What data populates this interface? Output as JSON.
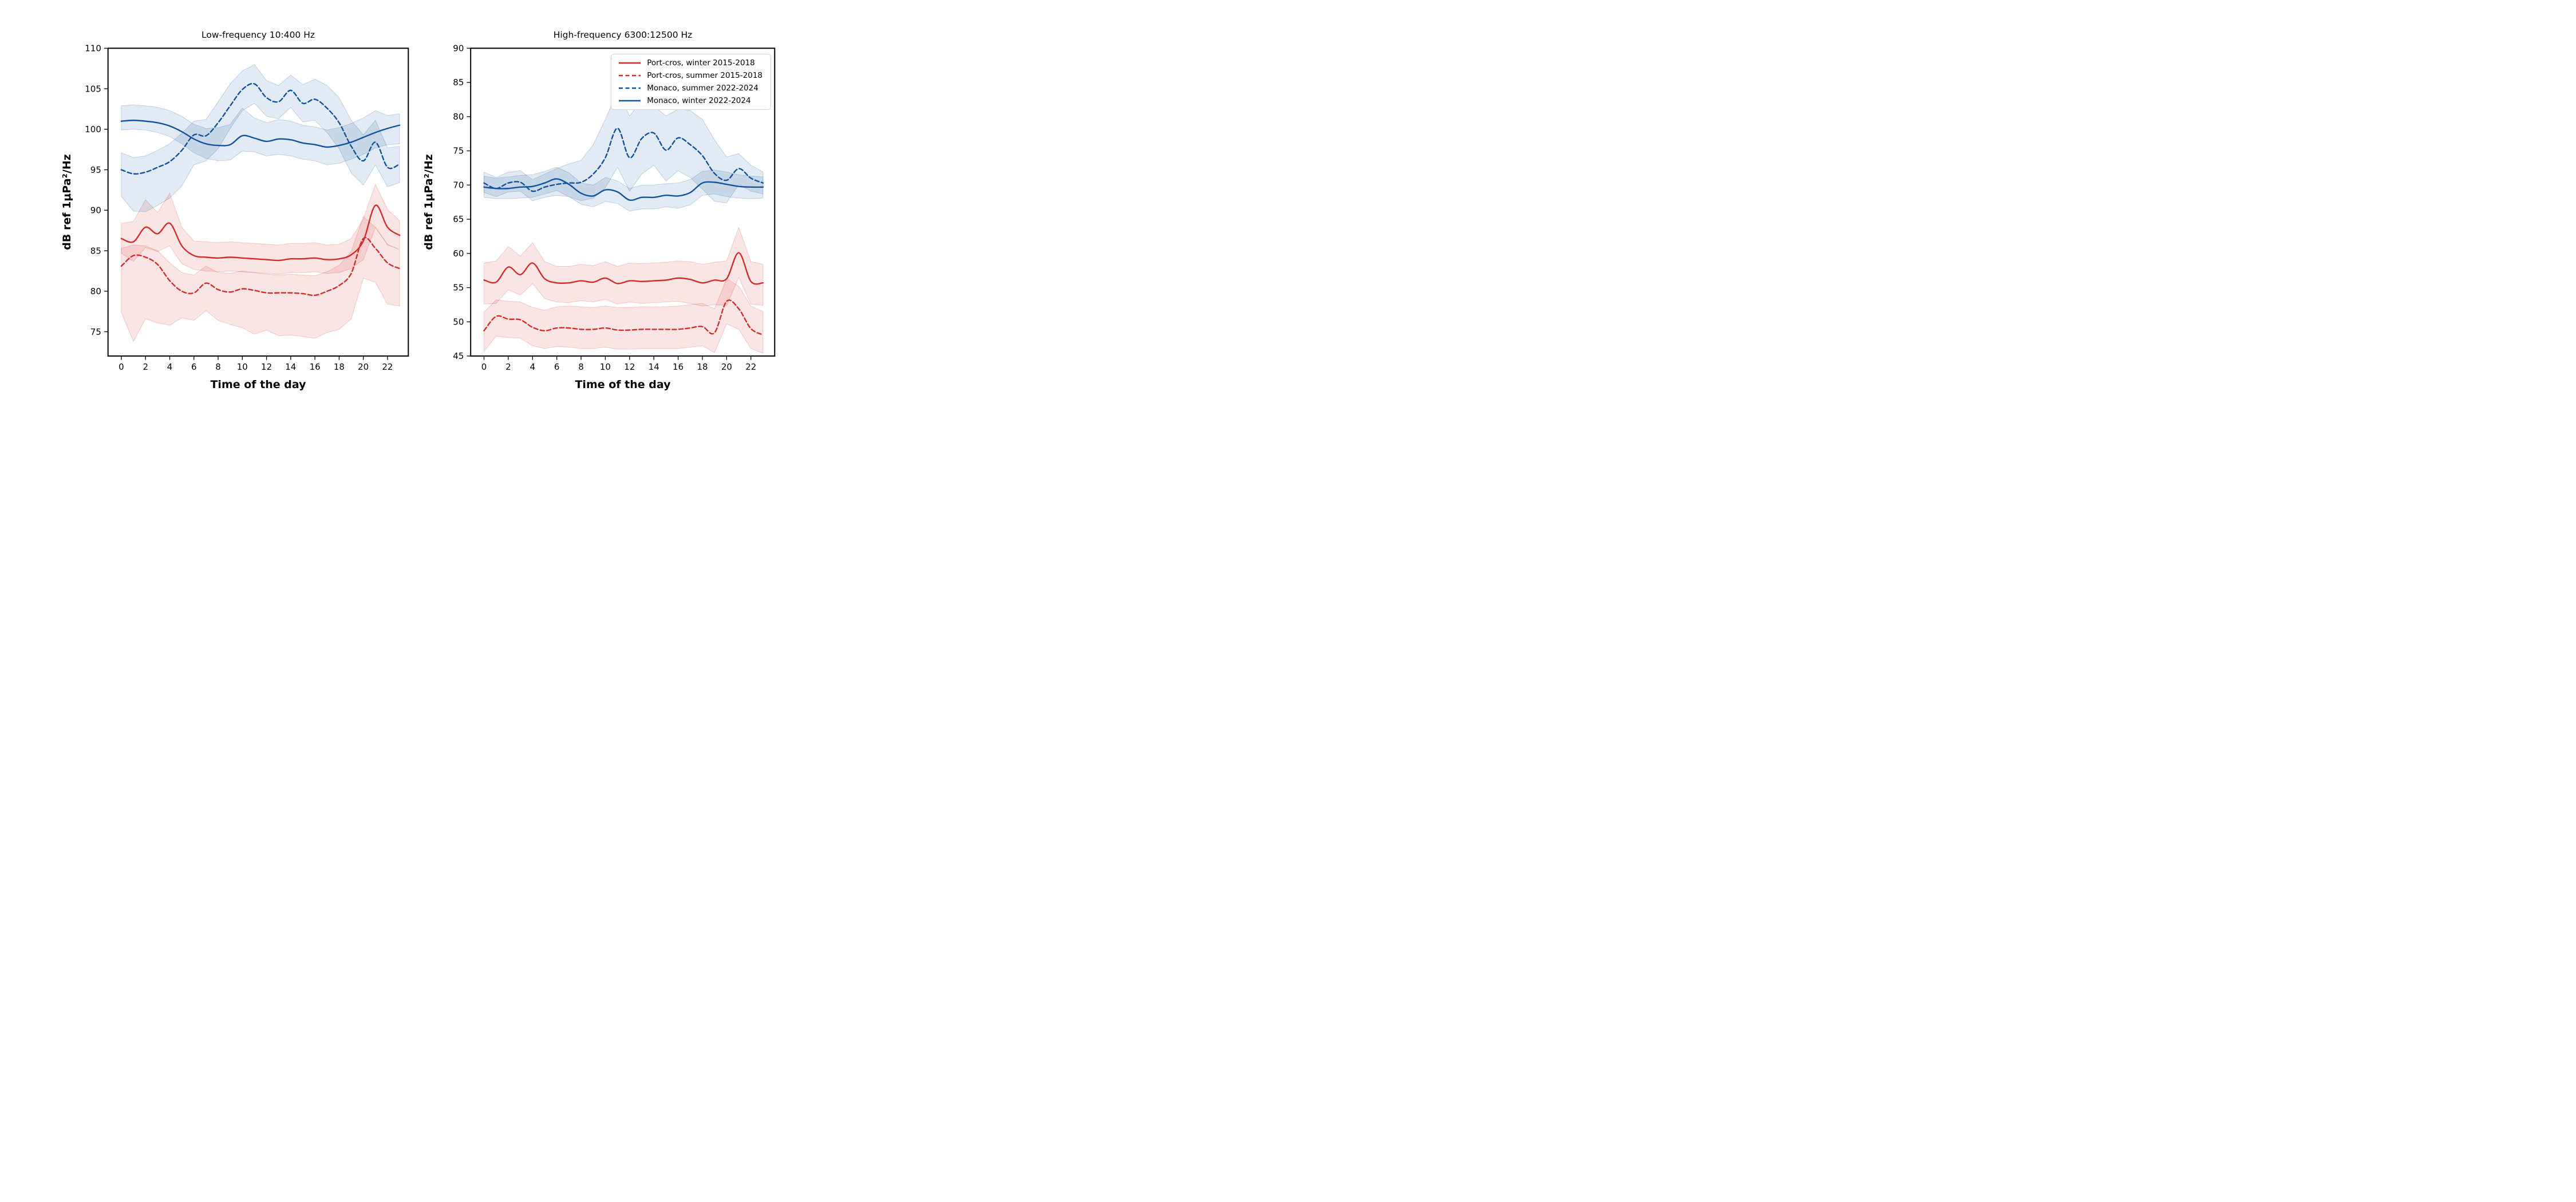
{
  "figure": {
    "left_title": "Low-frequency 10:400 Hz",
    "right_title": "High-frequency 6300:12500 Hz",
    "xlabel": "Time of the day",
    "ylabel": "dB ref 1μPa²/Hz"
  },
  "colors": {
    "red": "#d62b2b",
    "blue": "#10529e",
    "band_opacity": 0.12,
    "spine": "#000000"
  },
  "legend": {
    "entries": [
      {
        "label": "Port-cros, winter 2015-2018",
        "color": "#d62b2b",
        "dash": "solid"
      },
      {
        "label": "Port-cros, summer 2015-2018",
        "color": "#d62b2b",
        "dash": "dashed"
      },
      {
        "label": "Monaco, summer 2022-2024",
        "color": "#10529e",
        "dash": "dashed"
      },
      {
        "label": "Monaco, winter 2022-2024",
        "color": "#10529e",
        "dash": "solid"
      }
    ]
  },
  "chart_data": [
    {
      "type": "line",
      "title": "Low-frequency 10:400 Hz",
      "xlabel": "Time of the day",
      "ylabel": "dB ref 1μPa²/Hz",
      "x": [
        0,
        1,
        2,
        3,
        4,
        5,
        6,
        7,
        8,
        9,
        10,
        11,
        12,
        13,
        14,
        15,
        16,
        17,
        18,
        19,
        20,
        21,
        22,
        23
      ],
      "xticks": [
        0,
        2,
        4,
        6,
        8,
        10,
        12,
        14,
        16,
        18,
        20,
        22
      ],
      "yticks": [
        75,
        80,
        85,
        90,
        95,
        100,
        105,
        110
      ],
      "ylim": [
        72,
        110
      ],
      "grid": false,
      "series": [
        {
          "name": "Port-cros, winter 2015-2018",
          "color": "#d62b2b",
          "dash": "solid",
          "values": [
            86.5,
            86.1,
            87.9,
            87.1,
            88.4,
            85.6,
            84.4,
            84.2,
            84.1,
            84.2,
            84.1,
            84.0,
            83.9,
            83.8,
            84.0,
            84.0,
            84.1,
            83.9,
            84.0,
            84.5,
            86.2,
            90.6,
            87.9,
            86.9
          ],
          "band_upper": [
            88.4,
            88.6,
            91.3,
            89.7,
            92.1,
            87.9,
            86.2,
            86.1,
            86.0,
            86.1,
            86.0,
            85.9,
            85.8,
            85.7,
            85.9,
            85.9,
            86.0,
            85.7,
            85.8,
            86.5,
            88.9,
            93.2,
            90.1,
            88.7
          ],
          "band_lower": [
            84.7,
            83.7,
            85.4,
            84.9,
            85.6,
            83.4,
            82.7,
            82.5,
            82.4,
            82.5,
            82.4,
            82.3,
            82.2,
            82.1,
            82.3,
            82.3,
            82.4,
            82.2,
            82.3,
            82.8,
            83.9,
            87.9,
            85.7,
            85.2
          ]
        },
        {
          "name": "Port-cros, summer 2015-2018",
          "color": "#d62b2b",
          "dash": "dashed",
          "values": [
            83.1,
            84.4,
            84.2,
            83.3,
            81.3,
            80.0,
            79.8,
            81.0,
            80.2,
            79.9,
            80.3,
            80.1,
            79.8,
            79.8,
            79.8,
            79.7,
            79.5,
            80.0,
            80.7,
            82.2,
            86.5,
            85.3,
            83.5,
            82.8
          ],
          "band_upper": [
            85.3,
            85.7,
            85.6,
            85.0,
            83.5,
            82.3,
            82.0,
            83.1,
            82.3,
            82.2,
            82.5,
            82.3,
            82.1,
            82.0,
            82.1,
            82.0,
            81.9,
            82.4,
            83.2,
            84.9,
            89.2,
            87.9,
            85.8,
            85.1
          ],
          "band_lower": [
            77.4,
            73.8,
            76.6,
            76.1,
            75.8,
            76.7,
            76.4,
            77.6,
            76.4,
            75.9,
            75.5,
            74.7,
            75.2,
            74.5,
            74.6,
            74.4,
            74.2,
            74.9,
            75.3,
            76.6,
            81.6,
            81.1,
            78.4,
            78.2
          ]
        },
        {
          "name": "Monaco, summer 2022-2024",
          "color": "#10529e",
          "dash": "dashed",
          "values": [
            95.0,
            94.5,
            94.7,
            95.3,
            96.0,
            97.4,
            99.3,
            99.2,
            100.8,
            102.9,
            104.9,
            105.6,
            103.9,
            103.4,
            104.8,
            103.2,
            103.7,
            102.6,
            100.8,
            97.9,
            96.1,
            98.4,
            95.3,
            95.7
          ],
          "band_upper": [
            97.1,
            96.5,
            96.7,
            97.4,
            98.2,
            99.5,
            101.0,
            101.2,
            103.4,
            105.6,
            107.2,
            108.0,
            106.0,
            105.4,
            106.7,
            105.5,
            106.2,
            105.4,
            103.9,
            101.1,
            99.3,
            101.1,
            97.7,
            97.9
          ],
          "band_lower": [
            91.7,
            89.9,
            89.8,
            90.6,
            91.5,
            93.0,
            95.6,
            96.1,
            97.6,
            100.1,
            102.3,
            103.2,
            101.6,
            101.3,
            102.7,
            100.9,
            101.1,
            99.6,
            97.6,
            94.6,
            93.1,
            95.6,
            92.9,
            93.4
          ]
        },
        {
          "name": "Monaco, winter 2022-2024",
          "color": "#10529e",
          "dash": "solid",
          "values": [
            101.0,
            101.1,
            101.0,
            100.8,
            100.4,
            99.7,
            98.8,
            98.2,
            98.0,
            98.1,
            99.2,
            98.9,
            98.5,
            98.8,
            98.7,
            98.3,
            98.1,
            97.8,
            98.0,
            98.4,
            99.0,
            99.6,
            100.1,
            100.5
          ],
          "band_upper": [
            102.9,
            103.0,
            102.9,
            102.7,
            102.3,
            101.6,
            100.6,
            100.1,
            100.2,
            100.6,
            102.6,
            101.4,
            100.8,
            101.2,
            101.0,
            100.5,
            100.3,
            99.9,
            100.2,
            100.7,
            101.4,
            102.3,
            101.7,
            101.9
          ],
          "band_lower": [
            99.9,
            100.0,
            99.9,
            99.6,
            99.1,
            98.2,
            97.1,
            96.4,
            96.1,
            96.2,
            97.3,
            97.2,
            96.7,
            96.9,
            96.7,
            96.3,
            96.1,
            95.6,
            95.8,
            96.3,
            96.9,
            97.7,
            98.1,
            98.2
          ]
        }
      ]
    },
    {
      "type": "line",
      "title": "High-frequency 6300:12500 Hz",
      "xlabel": "Time of the day",
      "ylabel": "dB ref 1μPa²/Hz",
      "x": [
        0,
        1,
        2,
        3,
        4,
        5,
        6,
        7,
        8,
        9,
        10,
        11,
        12,
        13,
        14,
        15,
        16,
        17,
        18,
        19,
        20,
        21,
        22,
        23
      ],
      "xticks": [
        0,
        2,
        4,
        6,
        8,
        10,
        12,
        14,
        16,
        18,
        20,
        22
      ],
      "yticks": [
        45,
        50,
        55,
        60,
        65,
        70,
        75,
        80,
        85,
        90
      ],
      "ylim": [
        45,
        90
      ],
      "grid": false,
      "series": [
        {
          "name": "Port-cros, winter 2015-2018",
          "color": "#d62b2b",
          "dash": "solid",
          "values": [
            56.1,
            55.8,
            58.0,
            56.9,
            58.6,
            56.3,
            55.7,
            55.7,
            56.0,
            55.8,
            56.4,
            55.6,
            56.0,
            55.9,
            56.0,
            56.1,
            56.4,
            56.2,
            55.7,
            56.1,
            56.3,
            60.1,
            55.9,
            55.7
          ],
          "band_upper": [
            58.6,
            58.9,
            61.0,
            59.6,
            61.6,
            58.8,
            58.1,
            58.1,
            58.4,
            58.2,
            58.8,
            58.1,
            58.6,
            58.5,
            58.6,
            58.7,
            58.9,
            58.8,
            58.4,
            58.7,
            58.9,
            63.8,
            58.8,
            58.4
          ],
          "band_lower": [
            52.6,
            52.7,
            54.7,
            53.9,
            55.6,
            53.4,
            52.9,
            52.8,
            53.1,
            52.9,
            53.3,
            52.6,
            52.9,
            52.7,
            52.8,
            52.9,
            53.0,
            52.7,
            52.3,
            52.5,
            52.4,
            56.5,
            52.6,
            52.4
          ]
        },
        {
          "name": "Port-cros, summer 2015-2018",
          "color": "#d62b2b",
          "dash": "dashed",
          "values": [
            48.7,
            50.8,
            50.4,
            50.3,
            49.2,
            48.7,
            49.1,
            49.1,
            48.9,
            48.9,
            49.1,
            48.8,
            48.8,
            48.9,
            48.9,
            48.9,
            48.9,
            49.1,
            49.3,
            48.4,
            53.0,
            51.9,
            49.0,
            48.1
          ],
          "band_upper": [
            51.4,
            53.2,
            53.0,
            52.9,
            52.1,
            51.7,
            52.2,
            52.3,
            52.2,
            52.1,
            52.3,
            52.1,
            52.1,
            52.2,
            52.2,
            52.2,
            52.3,
            52.5,
            52.7,
            51.9,
            56.3,
            55.2,
            52.3,
            51.5
          ],
          "band_lower": [
            45.7,
            47.9,
            47.7,
            47.6,
            46.5,
            46.1,
            46.4,
            46.3,
            46.1,
            46.1,
            46.3,
            46.0,
            46.0,
            46.1,
            46.1,
            46.1,
            46.1,
            46.3,
            46.5,
            45.5,
            49.7,
            48.9,
            46.1,
            45.4
          ]
        },
        {
          "name": "Monaco, summer 2022-2024",
          "color": "#10529e",
          "dash": "dashed",
          "values": [
            70.3,
            69.5,
            70.3,
            70.4,
            69.1,
            69.7,
            70.1,
            70.3,
            70.4,
            71.6,
            74.0,
            78.3,
            74.0,
            76.8,
            77.6,
            75.1,
            76.9,
            75.9,
            74.3,
            71.7,
            70.7,
            72.4,
            71.0,
            70.3
          ],
          "band_upper": [
            71.9,
            71.1,
            71.9,
            72.1,
            70.8,
            71.6,
            72.4,
            73.1,
            73.6,
            75.9,
            79.6,
            83.8,
            80.1,
            82.3,
            81.6,
            80.1,
            81.1,
            80.9,
            79.6,
            76.6,
            74.1,
            74.6,
            72.9,
            71.9
          ],
          "band_lower": [
            68.9,
            68.3,
            69.0,
            69.1,
            67.7,
            68.2,
            68.5,
            68.3,
            67.7,
            68.1,
            69.6,
            72.6,
            69.1,
            71.6,
            72.9,
            70.6,
            72.1,
            71.1,
            69.4,
            67.6,
            67.4,
            70.1,
            69.1,
            68.7
          ]
        },
        {
          "name": "Monaco, winter 2022-2024",
          "color": "#10529e",
          "dash": "solid",
          "values": [
            69.7,
            69.5,
            69.5,
            69.7,
            69.8,
            70.3,
            70.9,
            70.1,
            68.8,
            68.4,
            69.3,
            69.0,
            67.8,
            68.2,
            68.2,
            68.5,
            68.4,
            68.9,
            70.3,
            70.4,
            70.1,
            69.8,
            69.7,
            69.7
          ],
          "band_upper": [
            71.3,
            71.0,
            71.2,
            71.4,
            71.5,
            72.0,
            72.6,
            71.8,
            70.3,
            70.0,
            71.1,
            70.6,
            69.5,
            70.0,
            70.0,
            70.2,
            70.3,
            70.8,
            72.0,
            72.2,
            71.9,
            71.5,
            71.3,
            71.2
          ],
          "band_lower": [
            68.2,
            68.0,
            68.0,
            68.1,
            68.2,
            68.7,
            69.2,
            68.3,
            67.2,
            66.8,
            67.6,
            67.3,
            66.2,
            66.5,
            66.5,
            66.8,
            66.6,
            67.1,
            68.5,
            68.7,
            68.3,
            68.1,
            68.0,
            68.1
          ]
        }
      ]
    }
  ]
}
